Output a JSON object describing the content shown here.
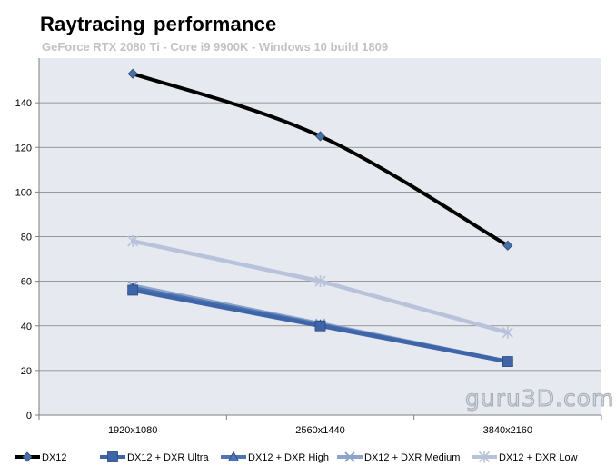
{
  "chart_data": {
    "type": "line",
    "title": "Raytracing  performance",
    "subtitle": "GeForce RTX 2080 Ti - Core i9 9900K - Windows 10 build 1809",
    "categories": [
      "1920x1080",
      "2560x1440",
      "3840x2160"
    ],
    "ylim": [
      0,
      160
    ],
    "yticks": [
      0,
      20,
      40,
      60,
      80,
      100,
      120,
      140
    ],
    "grid": true,
    "legend_position": "bottom",
    "xlabel": "",
    "ylabel": "",
    "series": [
      {
        "name": "DX12",
        "values": [
          153,
          125,
          76
        ],
        "color": "#000000",
        "marker": "diamond",
        "marker_color": "#4a6fa5",
        "smooth": true
      },
      {
        "name": "DX12 + DXR Ultra",
        "values": [
          56,
          40,
          24
        ],
        "color": "#3e65a8",
        "marker": "square",
        "marker_color": "#3e65a8",
        "smooth": false
      },
      {
        "name": "DX12 + DXR High",
        "values": [
          57,
          40.5,
          24
        ],
        "color": "#4d74b3",
        "marker": "triangle",
        "marker_color": "#4d74b3",
        "smooth": false
      },
      {
        "name": "DX12 + DXR Medium",
        "values": [
          58,
          41,
          24
        ],
        "color": "#8ea3c9",
        "marker": "cross",
        "marker_color": "#8ea3c9",
        "smooth": false
      },
      {
        "name": "DX12 + DXR Low",
        "values": [
          78,
          60,
          37
        ],
        "color": "#b8c2da",
        "marker": "star",
        "marker_color": "#b8c2da",
        "smooth": false
      }
    ],
    "watermark": "guru3D.com"
  }
}
